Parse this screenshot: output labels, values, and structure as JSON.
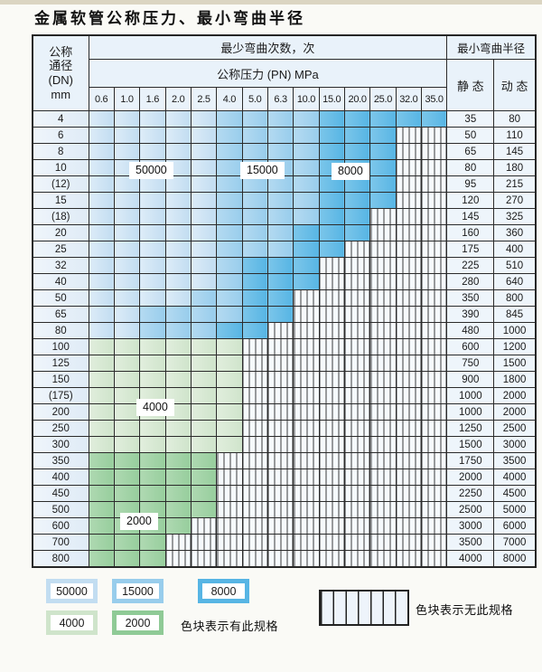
{
  "title": "金属软管公称压力、最小弯曲半径",
  "chart_data": {
    "type": "table",
    "title": "金属软管公称压力、最小弯曲半径",
    "headers": {
      "dn_lines": [
        "公称",
        "通径",
        "(DN)",
        "mm"
      ],
      "bend_cycles": "最少弯曲次数，次",
      "pressure": "公称压力 (PN) MPa",
      "radius": "最小弯曲半径",
      "static": "静 态",
      "dynamic": "动 态"
    },
    "pressures": [
      "0.6",
      "1.0",
      "1.6",
      "2.0",
      "2.5",
      "4.0",
      "5.0",
      "6.3",
      "10.0",
      "15.0",
      "20.0",
      "25.0",
      "32.0",
      "35.0"
    ],
    "band_legend": {
      "A": "50000",
      "B": "15000",
      "C": "8000",
      "D": "4000",
      "E": "2000",
      "X": "no-spec"
    },
    "rows": [
      {
        "dn": "4",
        "bands": "AAAAABBBBCCCCC",
        "static": "35",
        "dynamic": "80"
      },
      {
        "dn": "6",
        "bands": "AAAAABBBBCCCXX",
        "static": "50",
        "dynamic": "110"
      },
      {
        "dn": "8",
        "bands": "AAAAABBBBCCCXX",
        "static": "65",
        "dynamic": "145"
      },
      {
        "dn": "10",
        "bands": "AAAAABBBBCCCXX",
        "static": "80",
        "dynamic": "180"
      },
      {
        "dn": "(12)",
        "bands": "AAAAABBBBCCCXX",
        "static": "95",
        "dynamic": "215"
      },
      {
        "dn": "15",
        "bands": "AAAAABBBBCCCXX",
        "static": "120",
        "dynamic": "270"
      },
      {
        "dn": "(18)",
        "bands": "AAAAABBBBCCXXX",
        "static": "145",
        "dynamic": "325"
      },
      {
        "dn": "20",
        "bands": "AAAAABBBCCCXXX",
        "static": "160",
        "dynamic": "360"
      },
      {
        "dn": "25",
        "bands": "AAAAABBBCCXXXX",
        "static": "175",
        "dynamic": "400"
      },
      {
        "dn": "32",
        "bands": "AAAAABCCCXXXXX",
        "static": "225",
        "dynamic": "510"
      },
      {
        "dn": "40",
        "bands": "AAAAABCCCXXXXX",
        "static": "280",
        "dynamic": "640"
      },
      {
        "dn": "50",
        "bands": "AAAABBCCXXXXXX",
        "static": "350",
        "dynamic": "800"
      },
      {
        "dn": "65",
        "bands": "AABBBBCCXXXXXX",
        "static": "390",
        "dynamic": "845"
      },
      {
        "dn": "80",
        "bands": "AABBBCCXXXXXXX",
        "static": "480",
        "dynamic": "1000"
      },
      {
        "dn": "100",
        "bands": "DDDDDDXXXXXXXX",
        "static": "600",
        "dynamic": "1200"
      },
      {
        "dn": "125",
        "bands": "DDDDDDXXXXXXXX",
        "static": "750",
        "dynamic": "1500"
      },
      {
        "dn": "150",
        "bands": "DDDDDDXXXXXXXX",
        "static": "900",
        "dynamic": "1800"
      },
      {
        "dn": "(175)",
        "bands": "DDDDDDXXXXXXXX",
        "static": "1000",
        "dynamic": "2000"
      },
      {
        "dn": "200",
        "bands": "DDDDDDXXXXXXXX",
        "static": "1000",
        "dynamic": "2000"
      },
      {
        "dn": "250",
        "bands": "DDDDDDXXXXXXXX",
        "static": "1250",
        "dynamic": "2500"
      },
      {
        "dn": "300",
        "bands": "DDDDDDXXXXXXXX",
        "static": "1500",
        "dynamic": "3000"
      },
      {
        "dn": "350",
        "bands": "EEEEEXXXXXXXXX",
        "static": "1750",
        "dynamic": "3500"
      },
      {
        "dn": "400",
        "bands": "EEEEEXXXXXXXXX",
        "static": "2000",
        "dynamic": "4000"
      },
      {
        "dn": "450",
        "bands": "EEEEEXXXXXXXXX",
        "static": "2250",
        "dynamic": "4500"
      },
      {
        "dn": "500",
        "bands": "EEEEEXXXXXXXXX",
        "static": "2500",
        "dynamic": "5000"
      },
      {
        "dn": "600",
        "bands": "EEEEXXXXXXXXXX",
        "static": "3000",
        "dynamic": "6000"
      },
      {
        "dn": "700",
        "bands": "EEEXXXXXXXXXXX",
        "static": "3500",
        "dynamic": "7000"
      },
      {
        "dn": "800",
        "bands": "EEEXXXXXXXXXXX",
        "static": "4000",
        "dynamic": "8000"
      }
    ],
    "overlay_labels": [
      "50000",
      "15000",
      "8000",
      "4000",
      "2000"
    ]
  },
  "legend": {
    "swatches": [
      {
        "label": "50000",
        "band": "A"
      },
      {
        "label": "15000",
        "band": "B"
      },
      {
        "label": "8000",
        "band": "C"
      },
      {
        "label": "4000",
        "band": "D"
      },
      {
        "label": "2000",
        "band": "E"
      }
    ],
    "has_spec_note": "色块表示有此规格",
    "no_spec_note": "色块表示无此规格"
  },
  "colors": {
    "band_50000": "#c2ddf1",
    "band_15000": "#98cdec",
    "band_8000": "#57b5e4",
    "band_4000": "#cfe4cb",
    "band_2000": "#97ce9d",
    "header_bg": "#e9f2fa",
    "grid": "#2b2b2b",
    "top_strip": "#dbd5c2"
  }
}
